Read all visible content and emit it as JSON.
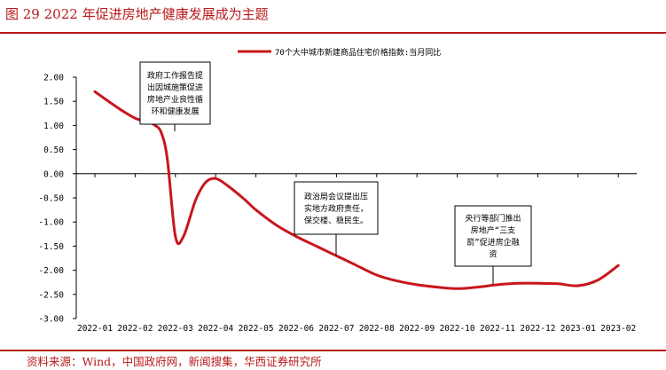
{
  "figure_title": "图 29 2022 年促进房地产健康发展成为主题",
  "source_note": "资料来源：Wind，中国政府网，新闻搜集，华西证券研究所",
  "colors": {
    "accent": "#b8191b",
    "series": "#c8161d",
    "axis": "#000000"
  },
  "chart_data": {
    "type": "line",
    "title": "",
    "xlabel": "",
    "ylabel": "",
    "ylim": [
      -3.0,
      2.0
    ],
    "yticks": [
      2.0,
      1.5,
      1.0,
      0.5,
      0.0,
      -0.5,
      -1.0,
      -1.5,
      -2.0,
      -2.5,
      -3.0
    ],
    "ytick_labels": [
      "2.00",
      "1.50",
      "1.00",
      "0.50",
      "0.00",
      "-0.50",
      "-1.00",
      "-1.50",
      "-2.00",
      "-2.50",
      "-3.00"
    ],
    "categories": [
      "2022-01",
      "2022-02",
      "2022-03",
      "2022-04",
      "2022-05",
      "2022-06",
      "2022-07",
      "2022-08",
      "2022-09",
      "2022-10",
      "2022-11",
      "2022-12",
      "2023-01",
      "2023-02"
    ],
    "legend": {
      "placement": "top-center",
      "entries": [
        "70个大中城市新建商品住宅价格指数:当月同比"
      ]
    },
    "grid": false,
    "series": [
      {
        "name": "70个大中城市新建商品住宅价格指数:当月同比",
        "x": [
          0,
          0.6,
          1.0,
          1.3,
          1.5,
          1.65,
          1.8,
          2.0,
          2.2,
          2.5,
          2.75,
          3.0,
          3.3,
          3.7,
          4.0,
          4.5,
          5.0,
          5.5,
          6.0,
          6.5,
          7.0,
          7.5,
          8.0,
          8.5,
          9.0,
          9.5,
          10.0,
          10.5,
          11.0,
          11.5,
          12.0,
          12.5,
          13.0
        ],
        "values": [
          1.7,
          1.35,
          1.15,
          1.08,
          1.0,
          0.85,
          0.3,
          -1.3,
          -1.3,
          -0.55,
          -0.18,
          -0.1,
          -0.25,
          -0.52,
          -0.75,
          -1.06,
          -1.3,
          -1.5,
          -1.7,
          -1.9,
          -2.1,
          -2.22,
          -2.3,
          -2.35,
          -2.38,
          -2.35,
          -2.3,
          -2.27,
          -2.27,
          -2.28,
          -2.32,
          -2.2,
          -1.9
        ]
      }
    ],
    "annotations": [
      {
        "id": "ann1",
        "lines": [
          "政府工作报告提",
          "出因城施策促进",
          "房地产业良性循",
          "环和健康发展"
        ]
      },
      {
        "id": "ann2",
        "lines": [
          "政治局会议提出压",
          "实地方政府责任，",
          "保交楼、稳民生。"
        ]
      },
      {
        "id": "ann3",
        "lines": [
          "央行等部门推出",
          "房地产“三支",
          "箭”促进房企融",
          "资"
        ]
      }
    ]
  }
}
